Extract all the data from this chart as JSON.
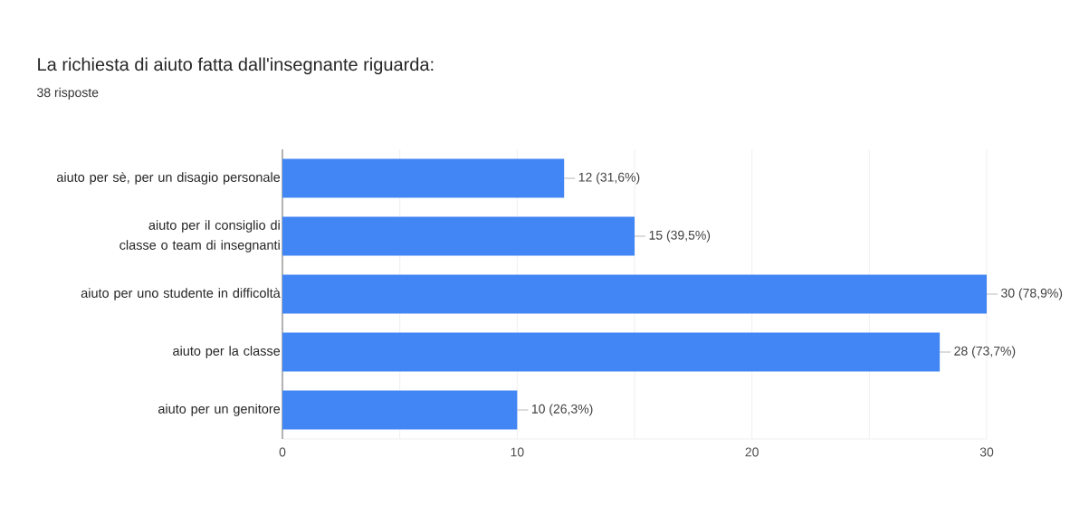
{
  "chart_data": {
    "type": "bar",
    "orientation": "horizontal",
    "title": "La richiesta di aiuto fatta dall'insegnante riguarda:",
    "subtitle": "38 risposte",
    "categories": [
      "aiuto per sè, per un disagio personale",
      "aiuto per il consiglio di classe o team di insegnanti",
      "aiuto per uno studente in difficoltà",
      "aiuto per la classe",
      "aiuto per un genitore"
    ],
    "values": [
      12,
      15,
      30,
      28,
      10
    ],
    "value_labels": [
      "12 (31,6%)",
      "15 (39,5%)",
      "30 (78,9%)",
      "28 (73,7%)",
      "10 (26,3%)"
    ],
    "color": "#4285f4",
    "xlim": [
      0,
      30
    ],
    "xticks": [
      0,
      {
        "value": 5,
        "label": null
      },
      10,
      {
        "value": 15,
        "label": null
      },
      20,
      {
        "value": 25,
        "label": null
      },
      30
    ],
    "grid": "x"
  }
}
